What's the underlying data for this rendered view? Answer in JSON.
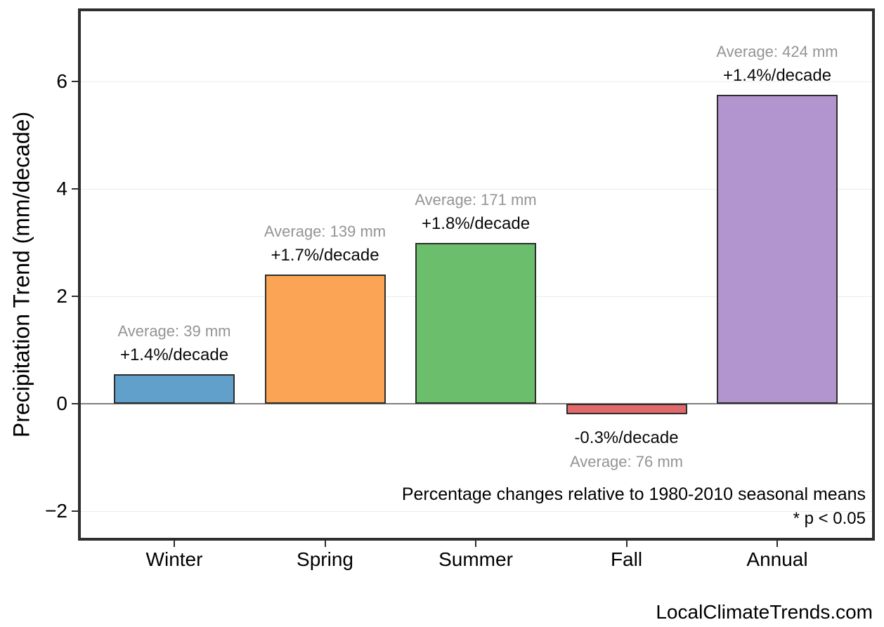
{
  "watermark": "LocalClimateTrends.com",
  "chart_data": {
    "type": "bar",
    "ylabel": "Precipitation Trend (mm/decade)",
    "categories": [
      "Winter",
      "Spring",
      "Summer",
      "Fall",
      "Annual"
    ],
    "values": [
      0.55,
      2.4,
      3.0,
      -0.2,
      5.75
    ],
    "averages_mm": [
      39,
      139,
      171,
      76,
      424
    ],
    "trend_pct_per_decade": [
      1.4,
      1.7,
      1.8,
      -0.3,
      1.4
    ],
    "bar_colors": [
      "#62A0CC",
      "#FCA455",
      "#6BBE6C",
      "#E16969",
      "#B294CF"
    ],
    "bar_edge_color": "#2d2d2d",
    "ylim": [
      -2.55,
      7.35
    ],
    "yticks": [
      -2,
      0,
      2,
      4,
      6
    ],
    "ytick_labels": [
      "−2",
      "0",
      "2",
      "4",
      "6"
    ],
    "grid": true,
    "legend_position": "none",
    "annotations": [
      {
        "category": "Winter",
        "line1": {
          "text": "Average: 39 mm",
          "style": "muted"
        },
        "line2": {
          "text": "+1.4%/decade",
          "style": "strong"
        }
      },
      {
        "category": "Spring",
        "line1": {
          "text": "Average: 139 mm",
          "style": "muted"
        },
        "line2": {
          "text": "+1.7%/decade",
          "style": "strong"
        }
      },
      {
        "category": "Summer",
        "line1": {
          "text": "Average: 171 mm",
          "style": "muted"
        },
        "line2": {
          "text": "+1.8%/decade",
          "style": "strong"
        }
      },
      {
        "category": "Fall",
        "line1": {
          "text": "-0.3%/decade",
          "style": "strong"
        },
        "line2": {
          "text": "Average: 76 mm",
          "style": "muted"
        }
      },
      {
        "category": "Annual",
        "line1": {
          "text": "Average: 424 mm",
          "style": "muted"
        },
        "line2": {
          "text": "+1.4%/decade",
          "style": "strong"
        }
      }
    ],
    "notes": {
      "line1": "Percentage changes relative to 1980-2010 seasonal means",
      "line2": "* p < 0.05"
    }
  }
}
